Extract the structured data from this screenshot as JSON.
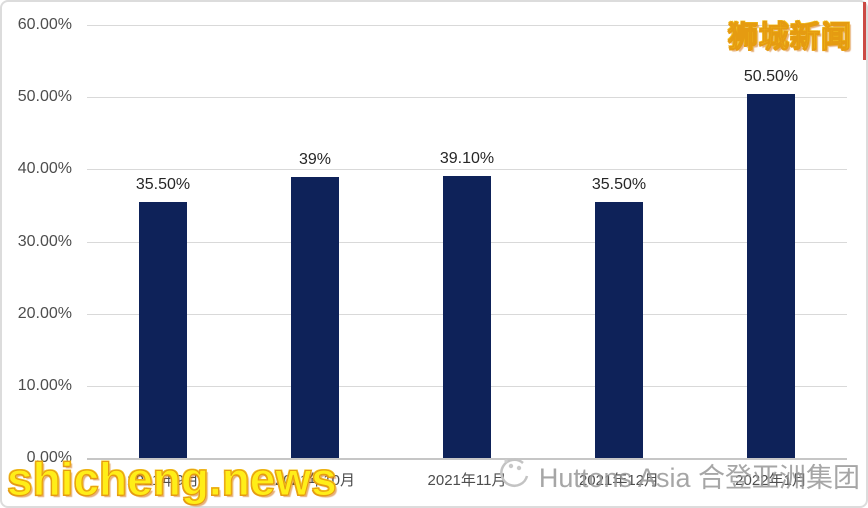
{
  "chart_data": {
    "type": "bar",
    "title": "",
    "xlabel": "",
    "ylabel": "",
    "categories": [
      "2021年9月",
      "2021年10月",
      "2021年11月",
      "2021年12月",
      "2022年1月"
    ],
    "values": [
      35.5,
      39,
      39.1,
      35.5,
      50.5
    ],
    "data_labels": [
      "35.50%",
      "39%",
      "39.10%",
      "35.50%",
      "50.50%"
    ],
    "y_tick_labels": [
      "60.00%",
      "50.00%",
      "40.00%",
      "30.00%",
      "20.00%",
      "10.00%",
      "0.00%"
    ],
    "y_tick_values": [
      60,
      50,
      40,
      30,
      20,
      10,
      0
    ],
    "ylim": [
      0,
      60
    ],
    "grid": true,
    "legend": "none",
    "bar_color": "#0e2259"
  },
  "watermarks": {
    "top_right": "狮城新闻",
    "bottom_left": "shicheng.news",
    "bottom_right_text": "Huttons Asia 合登亚洲集团"
  },
  "colors": {
    "bar": "#0e2259",
    "gridline": "#d9d9d9",
    "axis_line": "#c6c6c6",
    "tick_label": "#4d4d4d",
    "data_label": "#262626",
    "watermark_yellow": "#ffee18",
    "watermark_outline": "#e59b11",
    "watermark_gray": "#9a9a9a",
    "red_edge": "#cb4a45"
  }
}
